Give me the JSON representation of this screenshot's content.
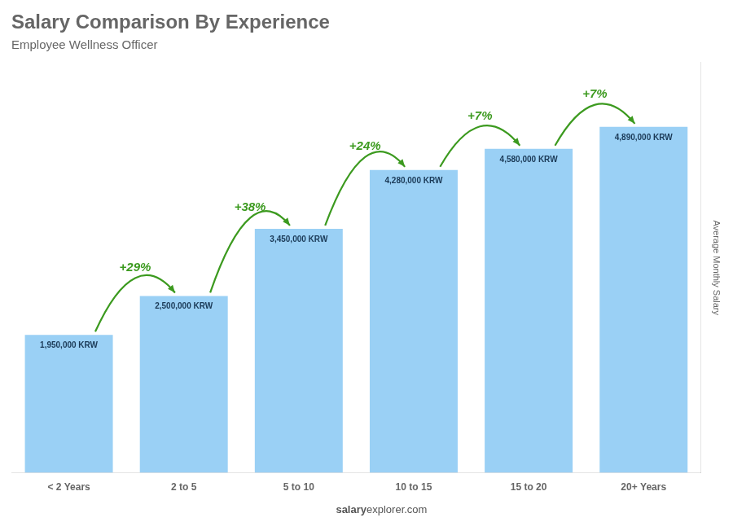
{
  "chart_data": {
    "type": "bar",
    "title": "Salary Comparison By Experience",
    "subtitle": "Employee Wellness Officer",
    "categories": [
      "< 2 Years",
      "2 to 5",
      "5 to 10",
      "10 to 15",
      "15 to 20",
      "20+ Years"
    ],
    "values": [
      1950000,
      2500000,
      3450000,
      4280000,
      4580000,
      4890000
    ],
    "value_labels": [
      "1,950,000 KRW",
      "2,500,000 KRW",
      "3,450,000 KRW",
      "4,280,000 KRW",
      "4,580,000 KRW",
      "4,890,000 KRW"
    ],
    "data_labels": true,
    "annotations": [
      "+29%",
      "+38%",
      "+24%",
      "+7%",
      "+7%"
    ],
    "ylabel": "Average Monthly Salary",
    "watermark": [
      "salary",
      "explorer.com"
    ],
    "ylim": [
      0,
      5800000
    ],
    "grid": false,
    "tick_labels": "x"
  }
}
